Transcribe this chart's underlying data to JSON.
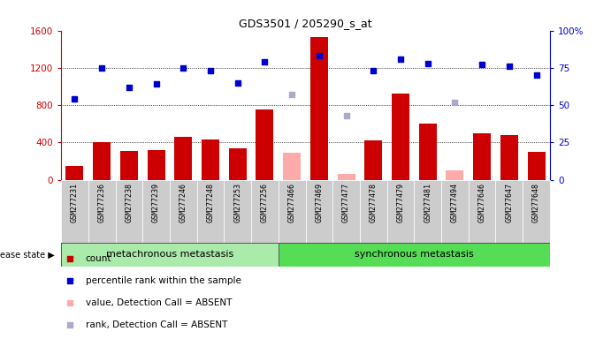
{
  "title": "GDS3501 / 205290_s_at",
  "samples": [
    "GSM277231",
    "GSM277236",
    "GSM277238",
    "GSM277239",
    "GSM277246",
    "GSM277248",
    "GSM277253",
    "GSM277256",
    "GSM277466",
    "GSM277469",
    "GSM277477",
    "GSM277478",
    "GSM277479",
    "GSM277481",
    "GSM277494",
    "GSM277646",
    "GSM277647",
    "GSM277648"
  ],
  "counts": [
    150,
    400,
    310,
    320,
    460,
    430,
    340,
    750,
    null,
    1530,
    null,
    420,
    920,
    600,
    null,
    500,
    480,
    300
  ],
  "absent_counts": [
    null,
    null,
    null,
    null,
    null,
    null,
    null,
    null,
    290,
    null,
    60,
    null,
    null,
    null,
    100,
    null,
    null,
    null
  ],
  "percentile_ranks": [
    54,
    75,
    62,
    64,
    75,
    73,
    65,
    79,
    null,
    83,
    null,
    73,
    81,
    78,
    null,
    77,
    76,
    70
  ],
  "absent_ranks": [
    null,
    null,
    null,
    null,
    null,
    null,
    null,
    null,
    57,
    null,
    43,
    null,
    null,
    null,
    52,
    null,
    null,
    null
  ],
  "detection_present": [
    true,
    true,
    true,
    true,
    true,
    true,
    true,
    true,
    false,
    true,
    false,
    true,
    true,
    true,
    false,
    true,
    true,
    true
  ],
  "group1_count": 8,
  "group2_count": 10,
  "group1_label": "metachronous metastasis",
  "group2_label": "synchronous metastasis",
  "ylim_left": [
    0,
    1600
  ],
  "ylim_right": [
    0,
    100
  ],
  "yticks_left": [
    0,
    400,
    800,
    1200,
    1600
  ],
  "yticks_right": [
    0,
    25,
    50,
    75,
    100
  ],
  "bar_color_present": "#cc0000",
  "bar_color_absent": "#ffaaaa",
  "dot_color_present": "#0000cc",
  "dot_color_absent": "#aaaacc",
  "group1_color": "#aaeaaa",
  "group2_color": "#55dd55",
  "tick_label_bg": "#cccccc",
  "bg_color": "#ffffff",
  "legend_items": [
    "count",
    "percentile rank within the sample",
    "value, Detection Call = ABSENT",
    "rank, Detection Call = ABSENT"
  ]
}
